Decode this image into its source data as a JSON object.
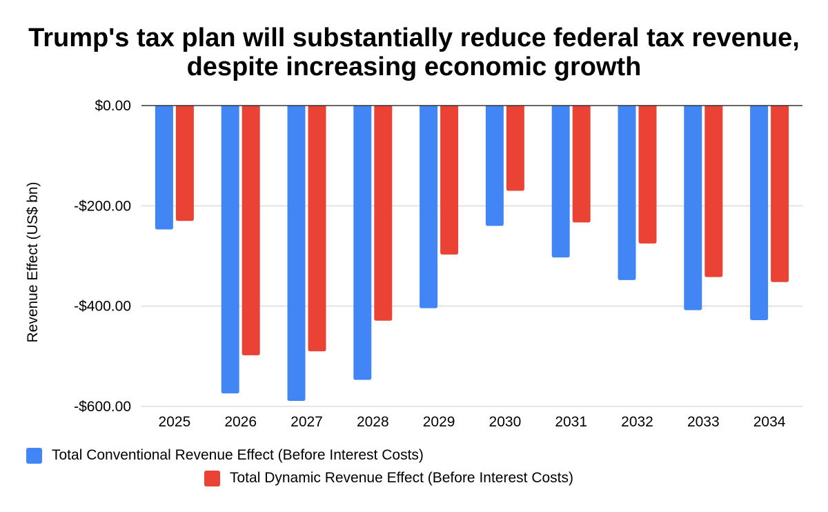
{
  "chart_data": {
    "type": "bar",
    "title": "Trump's tax plan will substantially reduce federal tax revenue, despite increasing economic growth",
    "xlabel": "",
    "ylabel": "Revenue Effect (US$ bn)",
    "ylim": [
      -600,
      0
    ],
    "yticks": [
      0,
      -200,
      -400,
      -600
    ],
    "ytick_labels": [
      "$0.00",
      "-$200.00",
      "-$400.00",
      "-$600.00"
    ],
    "grid": true,
    "legend_position": "bottom",
    "categories": [
      "2025",
      "2026",
      "2027",
      "2028",
      "2029",
      "2030",
      "2031",
      "2032",
      "2033",
      "2034"
    ],
    "series": [
      {
        "name": "Total Conventional Revenue Effect (Before Interest Costs)",
        "color": "#4285f4",
        "values": [
          -247,
          -574,
          -589,
          -547,
          -404,
          -240,
          -303,
          -348,
          -408,
          -428
        ]
      },
      {
        "name": "Total Dynamic Revenue Effect (Before Interest Costs)",
        "color": "#ea4335",
        "values": [
          -230,
          -498,
          -490,
          -429,
          -297,
          -170,
          -233,
          -275,
          -342,
          -352
        ]
      }
    ]
  }
}
